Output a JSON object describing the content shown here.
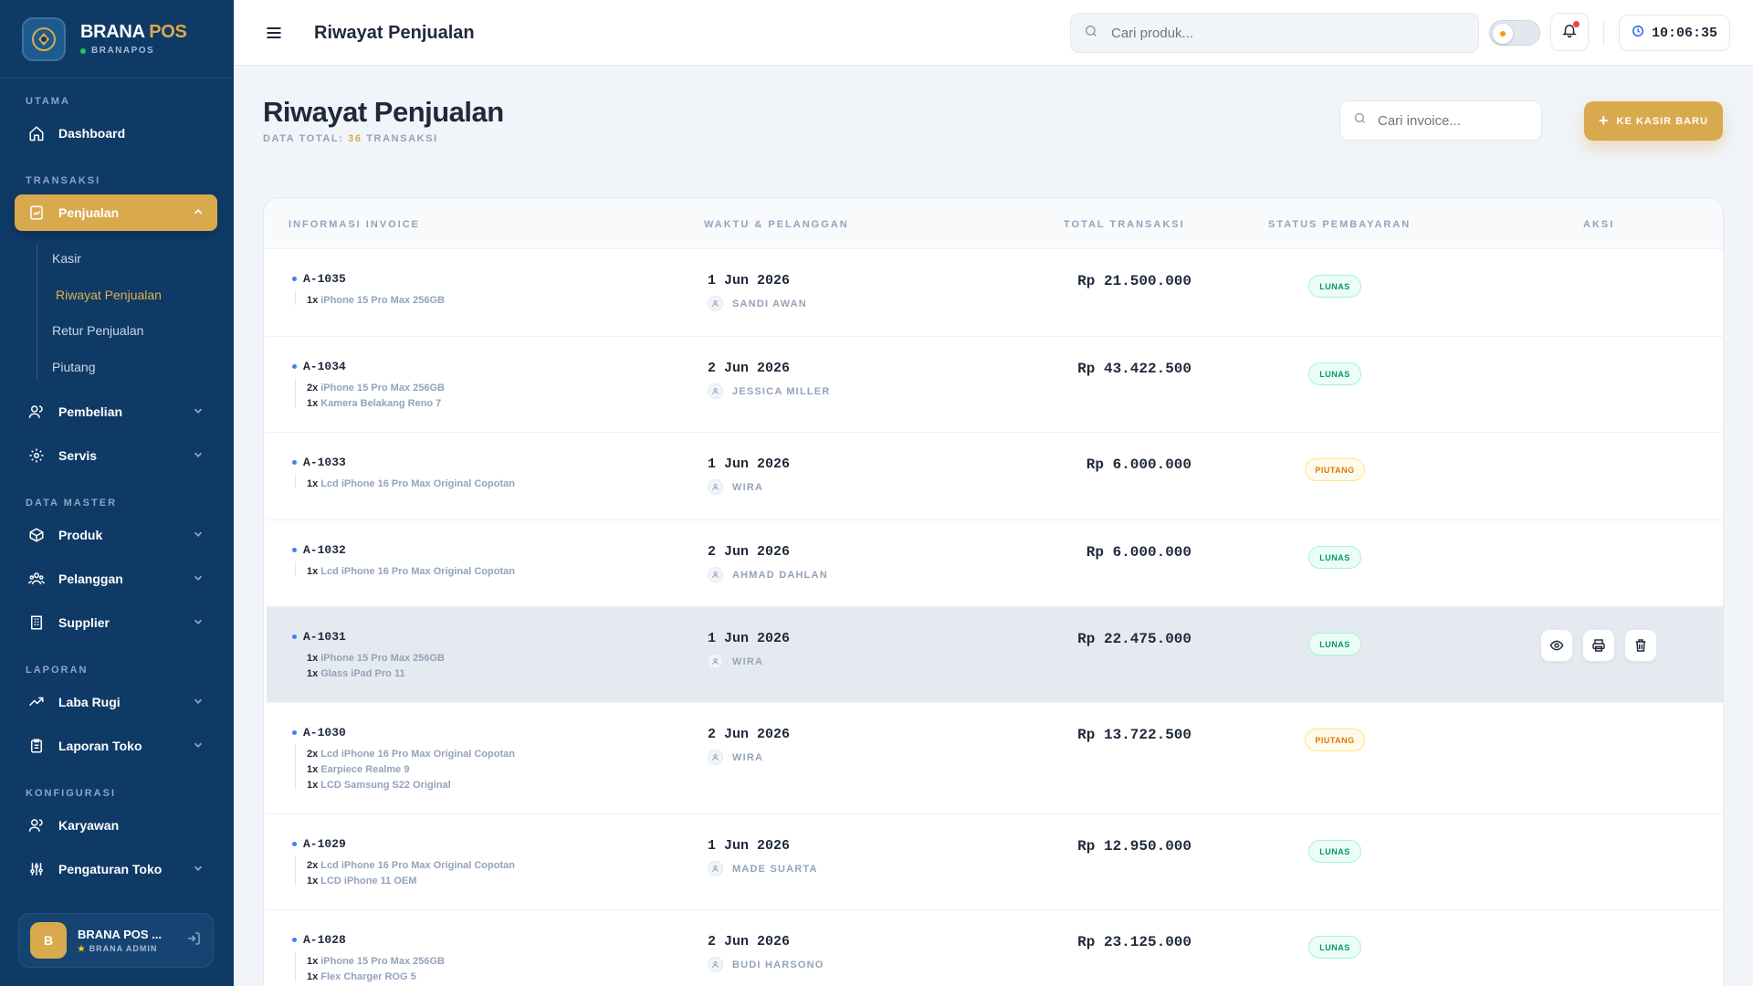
{
  "brand": {
    "name": "BRANA",
    "name_accent": "POS",
    "subtitle": "BRANAPOS"
  },
  "nav": {
    "sections": {
      "utama": "UTAMA",
      "transaksi": "TRANSAKSI",
      "data_master": "DATA MASTER",
      "laporan": "LAPORAN",
      "konfigurasi": "KONFIGURASI"
    },
    "dashboard": "Dashboard",
    "penjualan": "Penjualan",
    "sub": {
      "kasir": "Kasir",
      "riwayat": "Riwayat Penjualan",
      "retur": "Retur Penjualan",
      "piutang": "Piutang"
    },
    "pembelian": "Pembelian",
    "servis": "Servis",
    "produk": "Produk",
    "pelanggan": "Pelanggan",
    "supplier": "Supplier",
    "laba_rugi": "Laba Rugi",
    "laporan_toko": "Laporan Toko",
    "karyawan": "Karyawan",
    "pengaturan_toko": "Pengaturan Toko"
  },
  "user": {
    "initial": "B",
    "name": "BRANA POS ...",
    "role": "BRANA ADMIN"
  },
  "topbar": {
    "title": "Riwayat Penjualan",
    "search_placeholder": "Cari produk...",
    "time": "10:06:35"
  },
  "page": {
    "title": "Riwayat Penjualan",
    "subtitle_prefix": "DATA TOTAL:",
    "count": "36",
    "subtitle_suffix": "TRANSAKSI",
    "invoice_search_placeholder": "Cari invoice...",
    "new_button": "KE KASIR BARU"
  },
  "table": {
    "headers": {
      "invoice": "INFORMASI INVOICE",
      "time_customer": "WAKTU & PELANGGAN",
      "total": "TOTAL TRANSAKSI",
      "status": "STATUS PEMBAYARAN",
      "action": "AKSI"
    },
    "rows": [
      {
        "invoice": "A-1035",
        "items": [
          {
            "qty": "1x",
            "name": "iPhone 15 Pro Max 256GB"
          }
        ],
        "date": "1 Jun 2026",
        "customer": "SANDI AWAN",
        "total": "Rp 21.500.000",
        "status": "LUNAS"
      },
      {
        "invoice": "A-1034",
        "items": [
          {
            "qty": "2x",
            "name": "iPhone 15 Pro Max 256GB"
          },
          {
            "qty": "1x",
            "name": "Kamera Belakang Reno 7"
          }
        ],
        "date": "2 Jun 2026",
        "customer": "JESSICA MILLER",
        "total": "Rp 43.422.500",
        "status": "LUNAS"
      },
      {
        "invoice": "A-1033",
        "items": [
          {
            "qty": "1x",
            "name": "Lcd iPhone 16 Pro Max Original Copotan"
          }
        ],
        "date": "1 Jun 2026",
        "customer": "WIRA",
        "total": "Rp 6.000.000",
        "status": "PIUTANG"
      },
      {
        "invoice": "A-1032",
        "items": [
          {
            "qty": "1x",
            "name": "Lcd iPhone 16 Pro Max Original Copotan"
          }
        ],
        "date": "2 Jun 2026",
        "customer": "AHMAD DAHLAN",
        "total": "Rp 6.000.000",
        "status": "LUNAS"
      },
      {
        "invoice": "A-1031",
        "items": [
          {
            "qty": "1x",
            "name": "iPhone 15 Pro Max 256GB"
          },
          {
            "qty": "1x",
            "name": "Glass iPad Pro 11"
          }
        ],
        "date": "1 Jun 2026",
        "customer": "WIRA",
        "total": "Rp 22.475.000",
        "status": "LUNAS"
      },
      {
        "invoice": "A-1030",
        "items": [
          {
            "qty": "2x",
            "name": "Lcd iPhone 16 Pro Max Original Copotan"
          },
          {
            "qty": "1x",
            "name": "Earpiece Realme 9"
          },
          {
            "qty": "1x",
            "name": "LCD Samsung S22 Original"
          }
        ],
        "date": "2 Jun 2026",
        "customer": "WIRA",
        "total": "Rp 13.722.500",
        "status": "PIUTANG"
      },
      {
        "invoice": "A-1029",
        "items": [
          {
            "qty": "2x",
            "name": "Lcd iPhone 16 Pro Max Original Copotan"
          },
          {
            "qty": "1x",
            "name": "LCD iPhone 11 OEM"
          }
        ],
        "date": "1 Jun 2026",
        "customer": "MADE SUARTA",
        "total": "Rp 12.950.000",
        "status": "LUNAS"
      },
      {
        "invoice": "A-1028",
        "items": [
          {
            "qty": "1x",
            "name": "iPhone 15 Pro Max 256GB"
          },
          {
            "qty": "1x",
            "name": "Flex Charger ROG 5"
          }
        ],
        "date": "2 Jun 2026",
        "customer": "BUDI HARSONO",
        "total": "Rp 23.125.000",
        "status": "LUNAS"
      }
    ]
  },
  "colors": {
    "sidebar": "#0f3a66",
    "accent": "#d9a94e",
    "lunas": "#059669",
    "piutang": "#d97706"
  }
}
